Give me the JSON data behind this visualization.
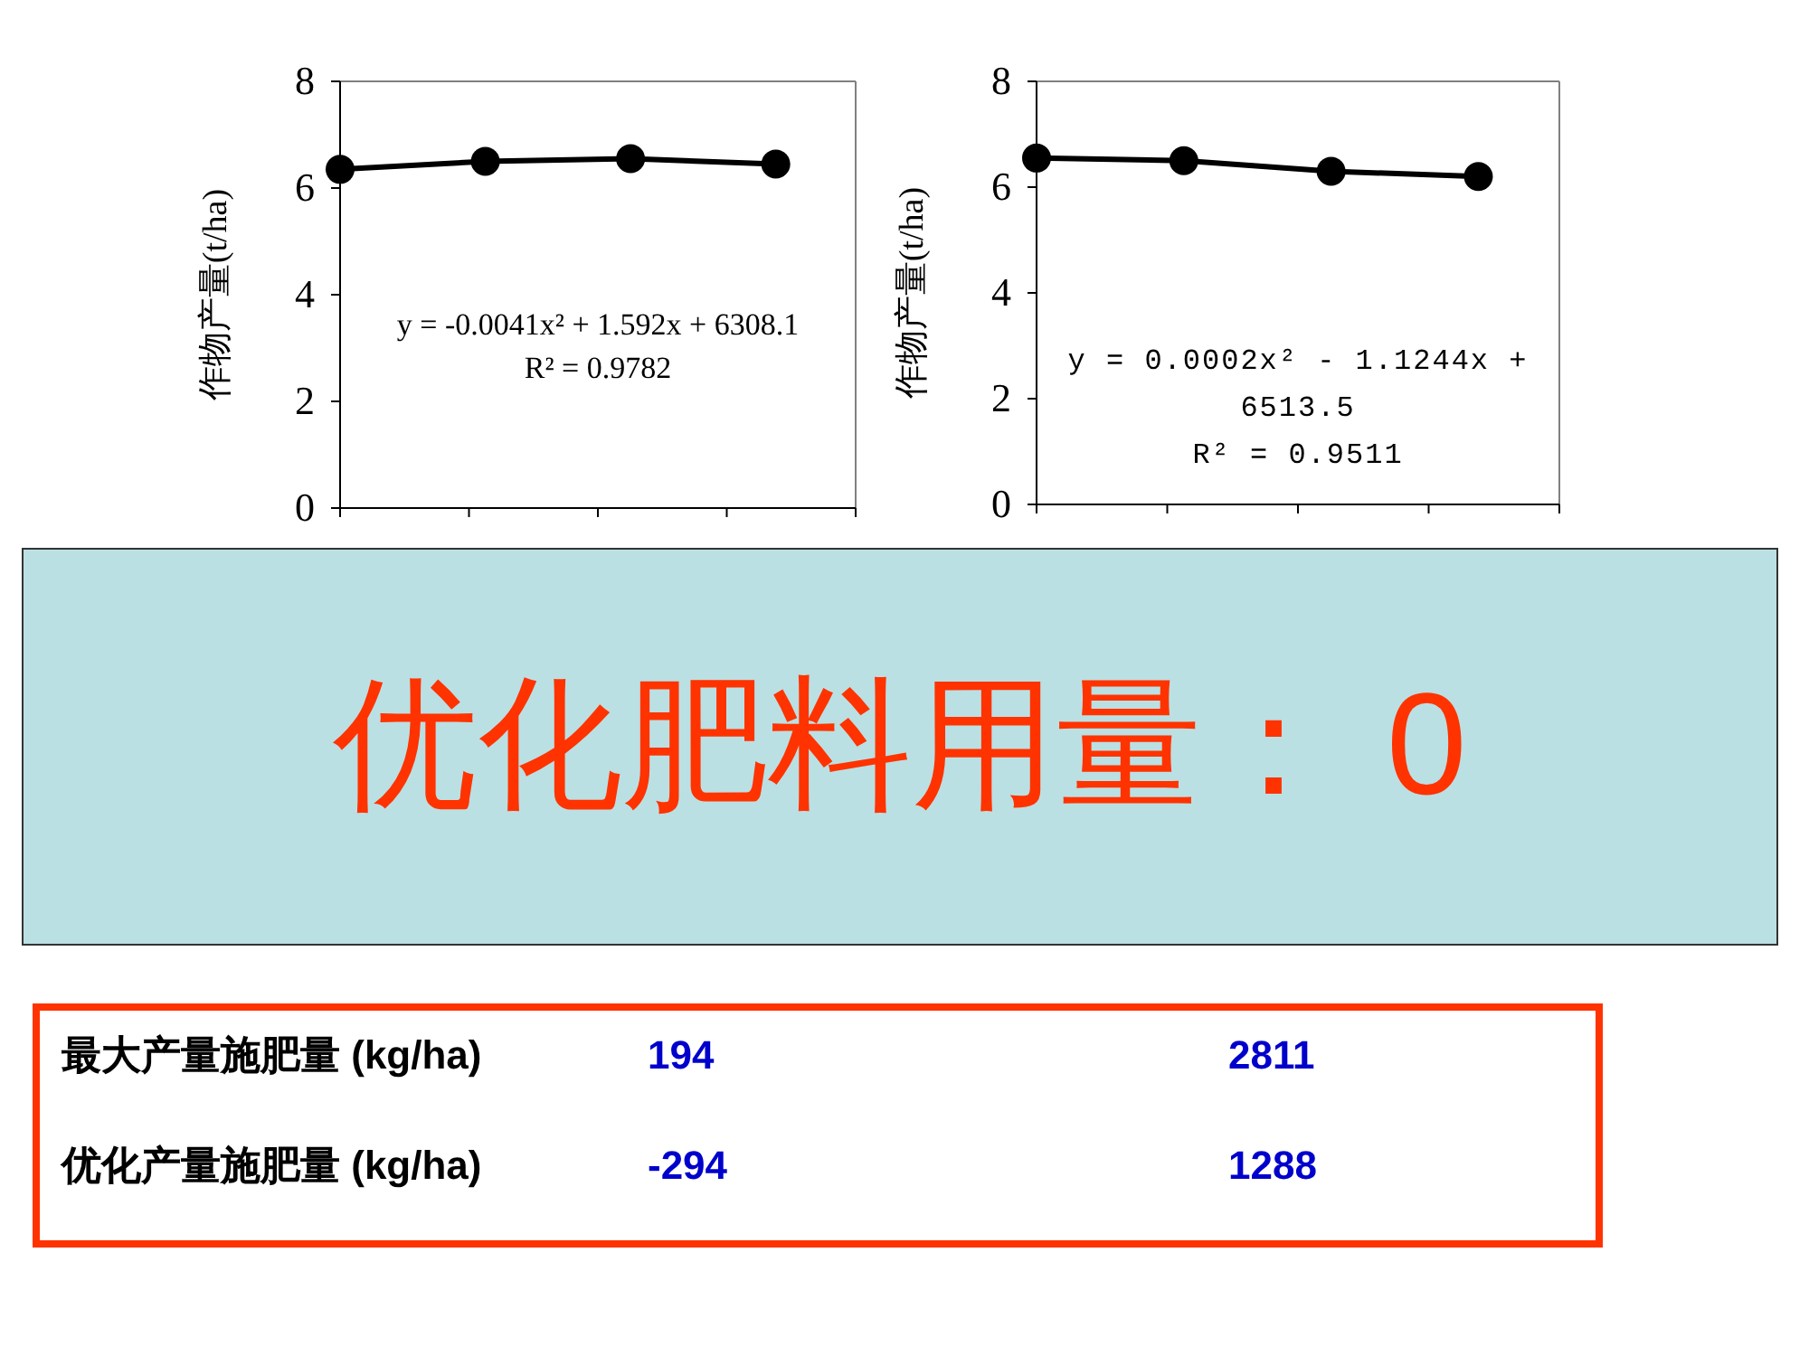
{
  "chart_data": [
    {
      "type": "line",
      "categories": [
        null,
        null,
        null,
        null
      ],
      "ylabel": "作物产量(t/ha)",
      "ylim": [
        0,
        8
      ],
      "yticks": [
        0,
        2,
        4,
        6,
        8
      ],
      "marker": "circle",
      "line_style": "solid",
      "series": [
        {
          "color": "#000000",
          "values": [
            6.35,
            6.5,
            6.55,
            6.45
          ]
        }
      ],
      "annotations": [
        "y = -0.0041x² + 1.592x + 6308.1",
        "R² = 0.9782"
      ]
    },
    {
      "type": "line",
      "categories": [
        null,
        null,
        null,
        null
      ],
      "ylabel": "作物产量(t/ha)",
      "ylim": [
        0,
        8
      ],
      "yticks": [
        0,
        2,
        4,
        6,
        8
      ],
      "marker": "circle",
      "line_style": "solid",
      "series": [
        {
          "color": "#000000",
          "values": [
            6.55,
            6.5,
            6.3,
            6.2
          ]
        }
      ],
      "annotations": [
        "y = 0.0002x² - 1.1244x + 6513.5",
        "R² = 0.9511"
      ]
    },
    {
      "type": "other",
      "title": "优化肥料用量： 0"
    },
    {
      "type": "other",
      "annotations": [
        "最大产量施肥量 (kg/ha)",
        "194",
        "2811",
        "优化产量施肥量 (kg/ha)",
        "-294",
        "1288"
      ]
    }
  ]
}
